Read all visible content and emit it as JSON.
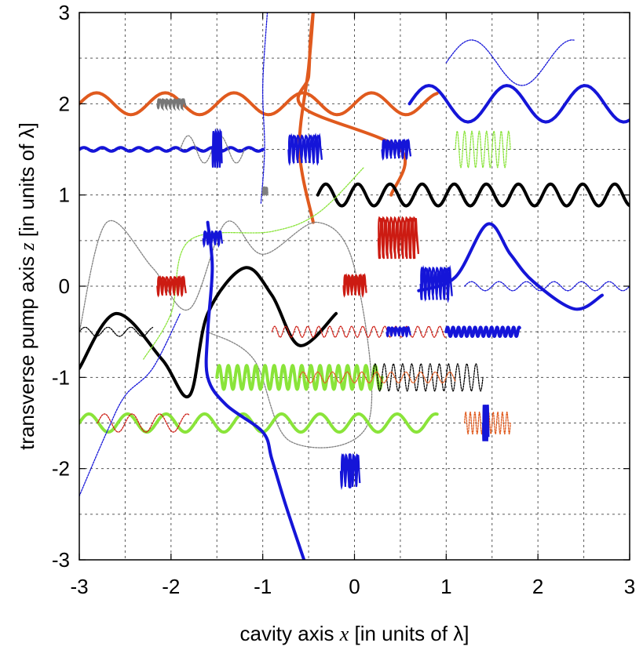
{
  "chart_data": {
    "type": "line",
    "title": "",
    "xlabel": {
      "prefix": "cavity axis ",
      "var": "x",
      "suffix": " [in units of λ]"
    },
    "ylabel": {
      "prefix": "transverse pump axis ",
      "var": "z",
      "suffix": " [in units of λ]"
    },
    "xlim": [
      -3,
      3
    ],
    "ylim": [
      -3,
      3
    ],
    "xticks": [
      -3,
      -2,
      -1,
      0,
      1,
      2,
      3
    ],
    "yticks": [
      -3,
      -2,
      -1,
      0,
      1,
      2,
      3
    ],
    "xtick_labels": [
      "-3",
      "-2",
      "-1",
      "0",
      "1",
      "2",
      "3"
    ],
    "ytick_labels": [
      "-3",
      "-2",
      "-1",
      "0",
      "1",
      "2",
      "3"
    ],
    "grid": true,
    "grid_step": 0.5,
    "legend": "none",
    "series": [
      {
        "color": "#e05a1e",
        "style": "thick",
        "kind": "vertical-path",
        "points": [
          [
            0.4,
            1.0
          ],
          [
            0.5,
            1.5
          ],
          [
            -0.55,
            1.95
          ],
          [
            -0.5,
            2.3
          ],
          [
            -0.48,
            2.7
          ],
          [
            -0.45,
            3.0
          ],
          [
            -0.5,
            2.4
          ],
          [
            -0.6,
            1.5
          ],
          [
            -0.45,
            0.7
          ]
        ]
      },
      {
        "color": "#e05a1e",
        "style": "thick",
        "kind": "wave",
        "x_range": [
          -3.0,
          0.9
        ],
        "center": 2.0,
        "amplitude": 0.12,
        "period": 0.75
      },
      {
        "color": "#1515d8",
        "style": "thick",
        "kind": "wave",
        "x_range": [
          0.6,
          3.0
        ],
        "center": 2.0,
        "amplitude": 0.2,
        "period": 0.85
      },
      {
        "color": "#1515d8",
        "style": "thin",
        "kind": "wave",
        "x_range": [
          1.0,
          2.4
        ],
        "center": 2.45,
        "amplitude": 0.25,
        "period": 1.1
      },
      {
        "color": "#1515d8",
        "style": "thick",
        "kind": "wave",
        "x_range": [
          -3.0,
          -1.0
        ],
        "center": 1.5,
        "amplitude": 0.02,
        "period": 0.2
      },
      {
        "color": "#808080",
        "style": "thin",
        "kind": "wave",
        "x_range": [
          -1.9,
          -1.2
        ],
        "center": 1.5,
        "amplitude": 0.15,
        "period": 0.35
      },
      {
        "color": "#8ae43a",
        "style": "thin",
        "kind": "wave",
        "x_range": [
          1.1,
          1.7
        ],
        "center": 1.5,
        "amplitude": 0.2,
        "period": 0.08
      },
      {
        "color": "#000000",
        "style": "thick",
        "kind": "wave",
        "x_range": [
          -0.4,
          3.0
        ],
        "center": 1.0,
        "amplitude": 0.12,
        "period": 0.35
      },
      {
        "color": "#1515d8",
        "style": "thick",
        "kind": "hump",
        "points": [
          [
            0.7,
            -0.05
          ],
          [
            1.1,
            0.1
          ],
          [
            1.45,
            0.68
          ],
          [
            1.7,
            0.35
          ],
          [
            1.95,
            0.05
          ],
          [
            2.4,
            -0.25
          ],
          [
            2.7,
            -0.1
          ]
        ]
      },
      {
        "color": "#1515d8",
        "style": "thin",
        "kind": "wave",
        "x_range": [
          1.2,
          3.0
        ],
        "center": 0.0,
        "amplitude": 0.05,
        "period": 0.3
      },
      {
        "color": "#000000",
        "style": "thick",
        "kind": "hump",
        "points": [
          [
            -3.0,
            -0.9
          ],
          [
            -2.6,
            -0.3
          ],
          [
            -2.1,
            -0.8
          ],
          [
            -1.8,
            -1.2
          ],
          [
            -1.6,
            -0.3
          ],
          [
            -1.2,
            0.2
          ],
          [
            -0.9,
            -0.1
          ],
          [
            -0.6,
            -0.65
          ],
          [
            -0.2,
            -0.3
          ]
        ]
      },
      {
        "color": "#808080",
        "style": "thin",
        "kind": "hump",
        "points": [
          [
            -3.0,
            -0.5
          ],
          [
            -2.7,
            0.7
          ],
          [
            -2.2,
            0.2
          ],
          [
            -1.8,
            -0.25
          ],
          [
            -1.4,
            0.7
          ],
          [
            -1.0,
            0.35
          ],
          [
            -0.4,
            0.7
          ],
          [
            0.0,
            0.2
          ],
          [
            0.15,
            -1.5
          ],
          [
            -0.7,
            -1.7
          ],
          [
            -1.1,
            -0.8
          ],
          [
            -1.6,
            -0.5
          ]
        ]
      },
      {
        "color": "#000000",
        "style": "thin",
        "kind": "wave",
        "x_range": [
          -3.0,
          -2.2
        ],
        "center": -0.5,
        "amplitude": 0.05,
        "period": 0.25
      },
      {
        "color": "#cc1b12",
        "style": "thin",
        "kind": "wave",
        "x_range": [
          -0.9,
          1.0
        ],
        "center": -0.5,
        "amplitude": 0.06,
        "period": 0.12
      },
      {
        "color": "#1515d8",
        "style": "thick",
        "kind": "wave",
        "x_range": [
          1.0,
          1.8
        ],
        "center": -0.5,
        "amplitude": 0.05,
        "period": 0.06
      },
      {
        "color": "#8ae43a",
        "style": "thick",
        "kind": "wave",
        "x_range": [
          -1.5,
          0.3
        ],
        "center": -1.0,
        "amplitude": 0.13,
        "period": 0.1
      },
      {
        "color": "#000000",
        "style": "thin",
        "kind": "wave",
        "x_range": [
          0.2,
          1.4
        ],
        "center": -1.0,
        "amplitude": 0.15,
        "period": 0.1
      },
      {
        "color": "#e05a1e",
        "style": "thin",
        "kind": "wave",
        "x_range": [
          -0.6,
          1.1
        ],
        "center": -1.0,
        "amplitude": 0.06,
        "period": 0.16
      },
      {
        "color": "#8ae43a",
        "style": "thick",
        "kind": "wave",
        "x_range": [
          -3.0,
          0.9
        ],
        "center": -1.5,
        "amplitude": 0.1,
        "period": 0.42
      },
      {
        "color": "#e05a1e",
        "style": "thin",
        "kind": "wave",
        "x_range": [
          1.2,
          1.7
        ],
        "center": -1.5,
        "amplitude": 0.12,
        "period": 0.05
      },
      {
        "color": "#cc1b12",
        "style": "thin",
        "kind": "wave",
        "x_range": [
          -2.8,
          -1.8
        ],
        "center": -1.5,
        "amplitude": 0.1,
        "period": 0.3
      },
      {
        "color": "#1515d8",
        "style": "thick",
        "kind": "vertical-path",
        "points": [
          [
            -1.6,
            0.7
          ],
          [
            -1.55,
            0.2
          ],
          [
            -1.6,
            -0.5
          ],
          [
            -1.6,
            -1.0
          ],
          [
            -1.4,
            -1.3
          ],
          [
            -1.0,
            -1.6
          ],
          [
            -0.9,
            -1.9
          ],
          [
            -0.75,
            -2.4
          ],
          [
            -0.55,
            -3.0
          ]
        ]
      },
      {
        "color": "#1515d8",
        "style": "thin",
        "kind": "vertical-path",
        "points": [
          [
            -0.95,
            3.0
          ],
          [
            -1.0,
            2.2
          ],
          [
            -0.98,
            1.5
          ],
          [
            -1.02,
            0.9
          ]
        ]
      },
      {
        "color": "#1515d8",
        "style": "thin",
        "kind": "vertical-path",
        "points": [
          [
            -3.0,
            -2.3
          ],
          [
            -2.7,
            -1.6
          ],
          [
            -2.5,
            -1.2
          ],
          [
            -2.2,
            -0.9
          ],
          [
            -1.9,
            -0.3
          ]
        ]
      },
      {
        "color": "#1515d8",
        "style": "thick",
        "kind": "vertical-path",
        "points": [
          [
            -0.05,
            -1.85
          ],
          [
            -0.05,
            -2.2
          ]
        ]
      },
      {
        "color": "#8ae43a",
        "style": "thin",
        "kind": "vertical-path",
        "points": [
          [
            -2.3,
            -0.8
          ],
          [
            -2.0,
            -0.3
          ],
          [
            -1.8,
            0.5
          ],
          [
            -0.9,
            0.6
          ],
          [
            -0.4,
            0.8
          ],
          [
            0.1,
            1.3
          ]
        ]
      }
    ],
    "blobs": [
      {
        "x": [
          -2.15,
          -1.85
        ],
        "y": [
          1.95,
          2.05
        ],
        "color": "#777777"
      },
      {
        "x": [
          -1.55,
          -1.45
        ],
        "y": [
          1.3,
          1.7
        ],
        "color": "#1515d8"
      },
      {
        "x": [
          -0.72,
          -0.37
        ],
        "y": [
          1.35,
          1.65
        ],
        "color": "#1515d8"
      },
      {
        "x": [
          0.3,
          0.6
        ],
        "y": [
          1.4,
          1.6
        ],
        "color": "#1515d8"
      },
      {
        "x": [
          0.26,
          0.68
        ],
        "y": [
          0.3,
          0.75
        ],
        "color": "#cc1b12"
      },
      {
        "x": [
          -1.65,
          -1.45
        ],
        "y": [
          0.45,
          0.6
        ],
        "color": "#1515d8"
      },
      {
        "x": [
          0.72,
          1.05
        ],
        "y": [
          -0.15,
          0.2
        ],
        "color": "#1515d8"
      },
      {
        "x": [
          -2.15,
          -1.85
        ],
        "y": [
          -0.1,
          0.1
        ],
        "color": "#cc1b12"
      },
      {
        "x": [
          -0.12,
          0.12
        ],
        "y": [
          -0.1,
          0.12
        ],
        "color": "#cc1b12"
      },
      {
        "x": [
          0.35,
          0.6
        ],
        "y": [
          -0.55,
          -0.45
        ],
        "color": "#1515d8"
      },
      {
        "x": [
          -1.0,
          -0.95
        ],
        "y": [
          1.0,
          1.08
        ],
        "color": "#808080"
      },
      {
        "x": [
          1.4,
          1.46
        ],
        "y": [
          -1.7,
          -1.3
        ],
        "color": "#1515d8"
      },
      {
        "x": [
          -0.15,
          0.05
        ],
        "y": [
          -1.85,
          -2.2
        ],
        "color": "#1515d8"
      }
    ]
  }
}
